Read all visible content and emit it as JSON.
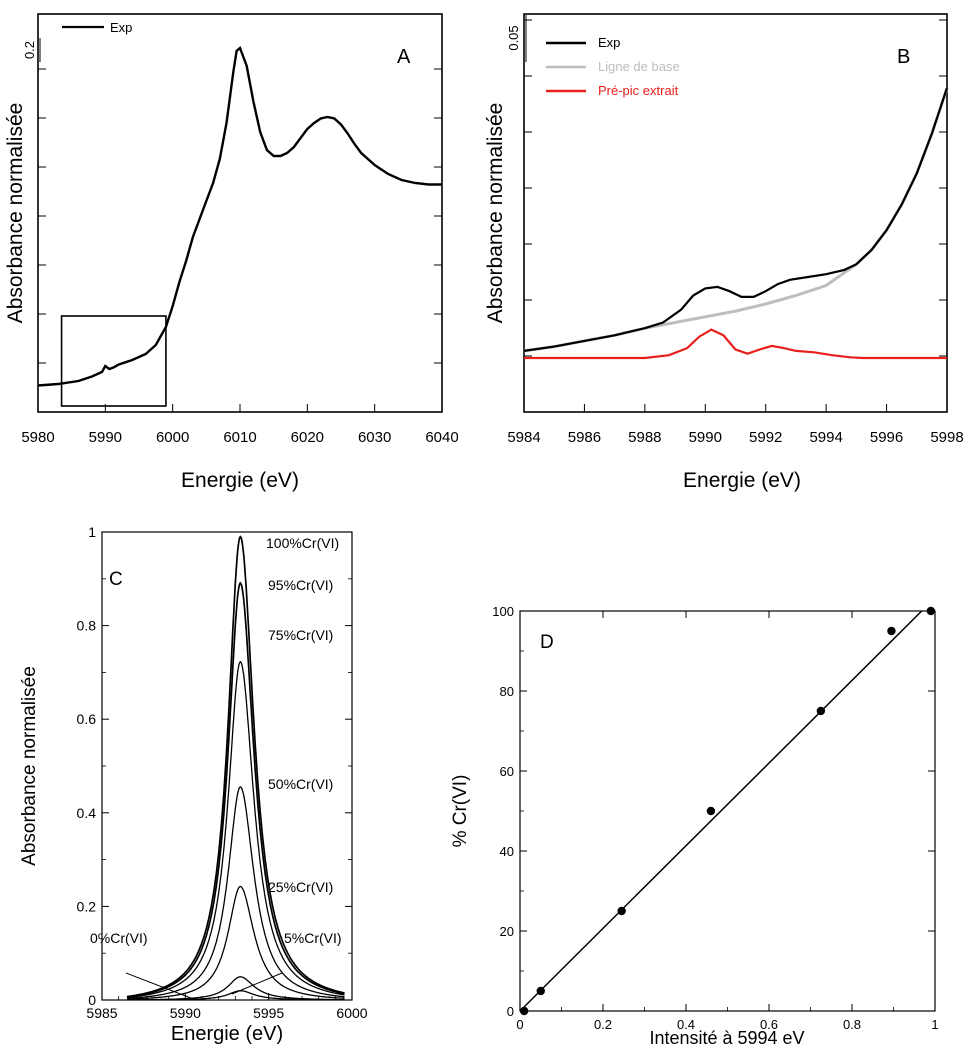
{
  "chart_data": [
    {
      "panel": "A",
      "type": "line",
      "panel_label": "A",
      "xlabel": "Energie (eV)",
      "ylabel": "Absorbance normalisée",
      "xlim": [
        5980,
        6040
      ],
      "xticks": [
        5980,
        5990,
        6000,
        6010,
        6020,
        6030,
        6040
      ],
      "scale_bar_label": "0.2",
      "legend": [
        "Exp"
      ],
      "legend_position": "top-left",
      "zoom_box": {
        "x": [
          5983.5,
          5999
        ],
        "note": "region enlarged in panel B"
      },
      "series": [
        {
          "name": "Exp",
          "color": "#000000",
          "x": [
            5980,
            5983,
            5986,
            5988,
            5989.5,
            5990,
            5990.6,
            5991.2,
            5992,
            5994,
            5996,
            5997.5,
            5999,
            6000,
            6001,
            6002,
            6003,
            6004,
            6005,
            6006,
            6007,
            6008,
            6009,
            6009.5,
            6010,
            6011,
            6012,
            6013,
            6014,
            6015,
            6016,
            6017,
            6018,
            6019,
            6020,
            6021,
            6022,
            6023,
            6024,
            6025,
            6026,
            6027,
            6028,
            6030,
            6032,
            6034,
            6036,
            6038,
            6040
          ],
          "y": [
            0.005,
            0.01,
            0.02,
            0.035,
            0.05,
            0.07,
            0.06,
            0.065,
            0.075,
            0.09,
            0.11,
            0.14,
            0.2,
            0.27,
            0.35,
            0.42,
            0.5,
            0.56,
            0.62,
            0.68,
            0.76,
            0.88,
            1.05,
            1.12,
            1.13,
            1.07,
            0.95,
            0.85,
            0.79,
            0.77,
            0.77,
            0.78,
            0.8,
            0.83,
            0.86,
            0.88,
            0.895,
            0.9,
            0.895,
            0.875,
            0.845,
            0.81,
            0.78,
            0.74,
            0.71,
            0.69,
            0.68,
            0.675,
            0.675
          ]
        }
      ]
    },
    {
      "panel": "B",
      "type": "line",
      "panel_label": "B",
      "xlabel": "Energie (eV)",
      "ylabel": "Absorbance normalisée",
      "xlim": [
        5984,
        5998
      ],
      "xticks": [
        5984,
        5986,
        5988,
        5990,
        5992,
        5994,
        5996,
        5998
      ],
      "scale_bar_label": "0.05",
      "legend": [
        "Exp",
        "Ligne de base",
        "Pré-pic extrait"
      ],
      "legend_position": "top-left",
      "series": [
        {
          "name": "Exp",
          "color": "#000000",
          "x": [
            5984,
            5985,
            5986,
            5987,
            5988,
            5988.6,
            5989.2,
            5989.6,
            5990,
            5990.4,
            5990.8,
            5991.2,
            5991.6,
            5992,
            5992.4,
            5992.8,
            5993.4,
            5994,
            5994.6,
            5995,
            5995.5,
            5996,
            5996.5,
            5997,
            5997.5,
            5998
          ],
          "y": [
            0.005,
            0.008,
            0.012,
            0.016,
            0.021,
            0.025,
            0.034,
            0.044,
            0.049,
            0.05,
            0.047,
            0.043,
            0.043,
            0.047,
            0.052,
            0.055,
            0.057,
            0.059,
            0.062,
            0.066,
            0.076,
            0.09,
            0.108,
            0.13,
            0.158,
            0.19
          ]
        },
        {
          "name": "Ligne de base",
          "color": "#bdbdbd",
          "x": [
            5984,
            5985,
            5986,
            5987,
            5988,
            5989,
            5990,
            5991,
            5992,
            5993,
            5994,
            5994.6,
            5995,
            5995.5,
            5996,
            5996.5,
            5997,
            5997.5,
            5998
          ],
          "y": [
            0.005,
            0.008,
            0.012,
            0.016,
            0.021,
            0.025,
            0.029,
            0.033,
            0.038,
            0.044,
            0.051,
            0.06,
            0.066,
            0.076,
            0.09,
            0.108,
            0.13,
            0.158,
            0.19
          ]
        },
        {
          "name": "Pré-pic extrait",
          "color": "#e8201c",
          "x": [
            5984,
            5988,
            5988.8,
            5989.4,
            5989.8,
            5990.2,
            5990.6,
            5991,
            5991.4,
            5991.8,
            5992.2,
            5992.6,
            5993,
            5993.6,
            5994.2,
            5994.8,
            5995.2,
            5998
          ],
          "y": [
            0.0,
            0.0,
            0.002,
            0.007,
            0.015,
            0.02,
            0.016,
            0.006,
            0.003,
            0.006,
            0.0085,
            0.007,
            0.005,
            0.004,
            0.002,
            0.0005,
            0.0,
            0.0
          ]
        }
      ]
    },
    {
      "panel": "C",
      "type": "line",
      "panel_label": "C",
      "xlabel": "Energie (eV)",
      "ylabel": "Absorbance normalisée",
      "xlim": [
        5985,
        6000
      ],
      "ylim": [
        0,
        1.0
      ],
      "xticks": [
        5985,
        5990,
        5995,
        6000
      ],
      "yticks": [
        0.0,
        0.2,
        0.4,
        0.6,
        0.8,
        1.0
      ],
      "center_ev": 5993.3,
      "series": [
        {
          "name": "100%Cr(VI)",
          "peak": 1.0
        },
        {
          "name": "95%Cr(VI)",
          "peak": 0.9
        },
        {
          "name": "75%Cr(VI)",
          "peak": 0.73
        },
        {
          "name": "50%Cr(VI)",
          "peak": 0.46
        },
        {
          "name": "25%Cr(VI)",
          "peak": 0.245
        },
        {
          "name": "5%Cr(VI)",
          "peak": 0.05
        },
        {
          "name": "0%Cr(VI)",
          "peak": 0.02
        }
      ]
    },
    {
      "panel": "D",
      "type": "scatter",
      "panel_label": "D",
      "xlabel": "Intensité à 5994 eV",
      "ylabel": "% Cr(VI)",
      "xlim": [
        0,
        1.0
      ],
      "ylim": [
        0,
        100
      ],
      "xticks": [
        0.0,
        0.2,
        0.4,
        0.6,
        0.8,
        1.0
      ],
      "yticks": [
        0,
        20,
        40,
        60,
        80,
        100
      ],
      "points": {
        "x": [
          0.01,
          0.05,
          0.245,
          0.46,
          0.725,
          0.895,
          0.99
        ],
        "y": [
          0,
          5,
          25,
          50,
          75,
          95,
          100
        ]
      },
      "fit_line": {
        "x": [
          0.0,
          0.968
        ],
        "y": [
          0,
          100
        ]
      }
    }
  ]
}
